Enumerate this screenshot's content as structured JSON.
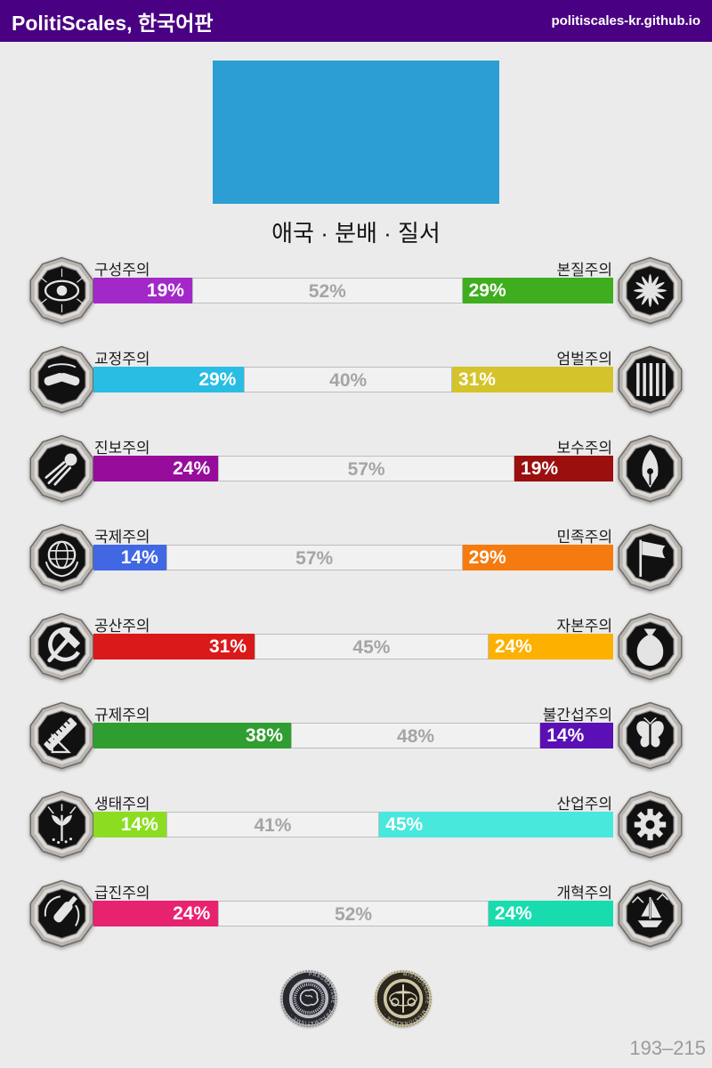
{
  "header": {
    "title": "PolitiScales, 한국어판",
    "site": "politiscales-kr.github.io",
    "bg": "#4a0082"
  },
  "flag": {
    "color": "#2d9ed3",
    "caption": "애국 · 분배 · 질서"
  },
  "axes": [
    {
      "left_label": "구성주의",
      "right_label": "본질주의",
      "left_pct": "19%",
      "neutral_pct": "52%",
      "right_pct": "29%",
      "left_color": "#a328c8",
      "right_color": "#3fae1e",
      "left_icon": "eye-icon",
      "right_icon": "dandelion-flower-icon"
    },
    {
      "left_label": "교정주의",
      "right_label": "엄벌주의",
      "left_pct": "29%",
      "neutral_pct": "40%",
      "right_pct": "31%",
      "left_color": "#29bde3",
      "right_color": "#d4c32a",
      "left_icon": "handshake-icon",
      "right_icon": "prison-bars-icon"
    },
    {
      "left_label": "진보주의",
      "right_label": "보수주의",
      "left_pct": "24%",
      "neutral_pct": "57%",
      "right_pct": "19%",
      "left_color": "#970d9b",
      "right_color": "#9c0f0f",
      "left_icon": "comet-icon",
      "right_icon": "pen-nib-icon"
    },
    {
      "left_label": "국제주의",
      "right_label": "민족주의",
      "left_pct": "14%",
      "neutral_pct": "57%",
      "right_pct": "29%",
      "left_color": "#4167e2",
      "right_color": "#f57b10",
      "left_icon": "globe-laurel-icon",
      "right_icon": "flag-icon"
    },
    {
      "left_label": "공산주의",
      "right_label": "자본주의",
      "left_pct": "31%",
      "neutral_pct": "45%",
      "right_pct": "24%",
      "left_color": "#da1a1a",
      "right_color": "#fcb000",
      "left_icon": "hammer-sickle-icon",
      "right_icon": "money-bag-icon"
    },
    {
      "left_label": "규제주의",
      "right_label": "불간섭주의",
      "left_pct": "38%",
      "neutral_pct": "48%",
      "right_pct": "14%",
      "left_color": "#2f9e30",
      "right_color": "#5a10b4",
      "left_icon": "ruler-set-square-icon",
      "right_icon": "butterfly-icon"
    },
    {
      "left_label": "생태주의",
      "right_label": "산업주의",
      "left_pct": "14%",
      "neutral_pct": "41%",
      "right_pct": "45%",
      "left_color": "#8cdd22",
      "right_color": "#48e8dc",
      "left_icon": "plant-icon",
      "right_icon": "gear-icon"
    },
    {
      "left_label": "급진주의",
      "right_label": "개혁주의",
      "left_pct": "24%",
      "neutral_pct": "52%",
      "right_pct": "24%",
      "left_color": "#e72370",
      "right_color": "#18dcae",
      "left_icon": "molotov-icon",
      "right_icon": "sailboat-icon"
    }
  ],
  "neutral_color": "#f1f1f1",
  "coins": [
    {
      "name": "pragmatism-coin",
      "ring_text": "PRAGMATISME · PRAGMATISME ·"
    },
    {
      "name": "missionary-coin",
      "ring_text": "MISSIONNAIRE · MISSIONNAIRE ·"
    }
  ],
  "footer": {
    "score_range": "193–215"
  }
}
